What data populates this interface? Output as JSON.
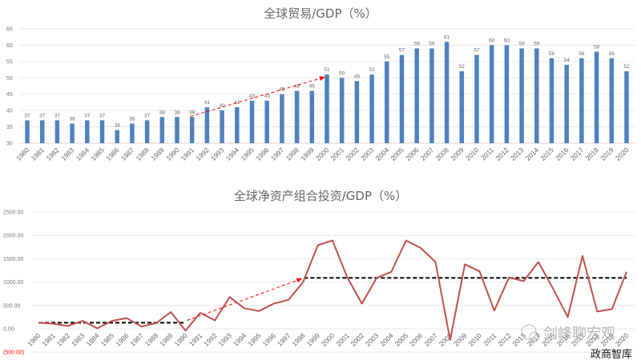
{
  "chart_data": [
    {
      "type": "bar",
      "title": "全球贸易/GDP（%）",
      "xlabel": "",
      "ylabel": "",
      "ylim": [
        30,
        65
      ],
      "yticks": [
        30,
        35,
        40,
        45,
        50,
        55,
        60,
        65
      ],
      "grid": true,
      "bar_color": "#4F81BD",
      "categories": [
        "1980",
        "1981",
        "1982",
        "1983",
        "1984",
        "1985",
        "1986",
        "1987",
        "1988",
        "1989",
        "1990",
        "1991",
        "1992",
        "1993",
        "1994",
        "1995",
        "1996",
        "1997",
        "1998",
        "1999",
        "2000",
        "2001",
        "2002",
        "2003",
        "2004",
        "2005",
        "2006",
        "2007",
        "2008",
        "2009",
        "2010",
        "2011",
        "2012",
        "2013",
        "2014",
        "2015",
        "2016",
        "2017",
        "2018",
        "2019",
        "2020"
      ],
      "values": [
        37,
        37,
        37,
        36,
        37,
        37,
        34,
        36,
        37,
        38,
        38,
        38,
        41,
        40,
        41,
        43,
        43,
        45,
        46,
        46,
        51,
        50,
        49,
        51,
        55,
        57,
        59,
        59,
        61,
        52,
        57,
        60,
        60,
        59,
        59,
        56,
        54,
        56,
        58,
        56,
        52
      ],
      "annotations": [
        {
          "type": "dashed-arrow",
          "color": "#FF0000",
          "from": "1991",
          "to": "2000"
        }
      ]
    },
    {
      "type": "line",
      "title": "全球净资产组合投资/GDP（%）",
      "xlabel": "",
      "ylabel": "",
      "ylim": [
        -500,
        2500
      ],
      "yticks": [
        "(500.00)",
        "0.00",
        "500.00",
        "1000.00",
        "1500.00",
        "2000.00",
        "2500.00"
      ],
      "grid": true,
      "line_color": "#C0504D",
      "categories": [
        "1980",
        "1981",
        "1982",
        "1983",
        "1984",
        "1985",
        "1986",
        "1987",
        "1988",
        "1989",
        "1990",
        "1991",
        "1992",
        "1993",
        "1994",
        "1995",
        "1996",
        "1997",
        "1998",
        "1999",
        "2000",
        "2001",
        "2002",
        "2003",
        "2004",
        "2005",
        "2006",
        "2007",
        "2008",
        "2009",
        "2010",
        "2011",
        "2012",
        "2013",
        "2014",
        "2015",
        "2016",
        "2017",
        "2018",
        "2019",
        "2020"
      ],
      "values": [
        130,
        110,
        60,
        170,
        10,
        170,
        230,
        50,
        120,
        360,
        -40,
        340,
        180,
        680,
        440,
        380,
        540,
        620,
        1000,
        1790,
        1890,
        1100,
        540,
        1090,
        1220,
        1890,
        1730,
        1430,
        -240,
        1380,
        1230,
        390,
        1100,
        1020,
        1430,
        860,
        250,
        1560,
        370,
        420,
        1220
      ],
      "annotations": [
        {
          "type": "dashed-mean",
          "color": "#000000",
          "from": "1980",
          "to": "1990",
          "value": 130
        },
        {
          "type": "dashed-mean",
          "color": "#000000",
          "from": "1998",
          "to": "2020",
          "value": 1090
        },
        {
          "type": "dashed-arrow",
          "color": "#FF0000",
          "from": "1990",
          "to": "1998"
        }
      ]
    }
  ],
  "watermark": {
    "primary": "剑峰聊宏观",
    "secondary": "政商智库"
  }
}
